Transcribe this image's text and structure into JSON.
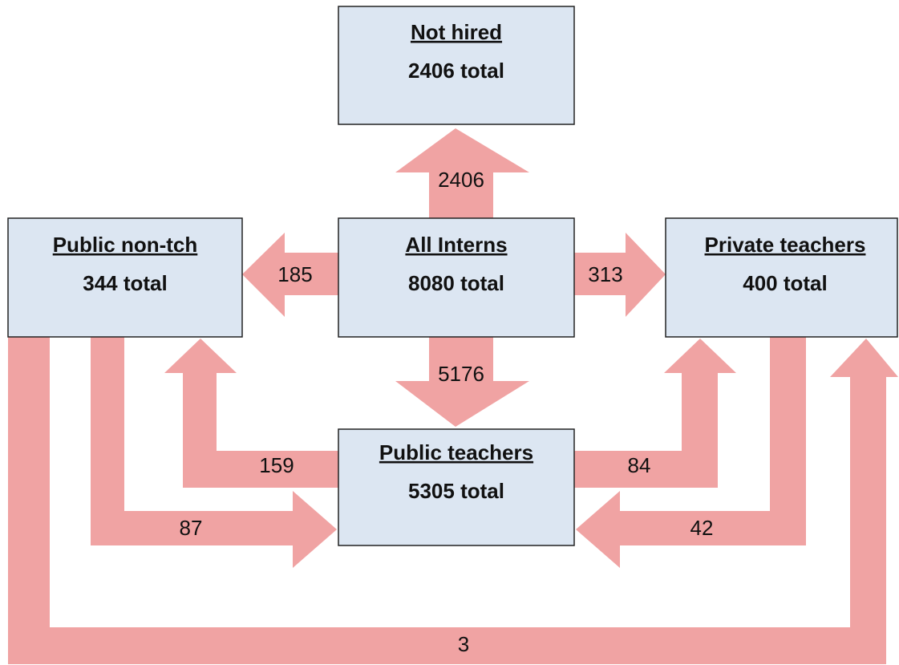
{
  "nodes": [
    {
      "title": "Not hired",
      "total": "2406 total"
    },
    {
      "title": "Public non-tch",
      "total": "344 total"
    },
    {
      "title": "All Interns",
      "total": "8080 total"
    },
    {
      "title": "Private teachers",
      "total": "400 total"
    },
    {
      "title": "Public teachers",
      "total": "5305 total"
    }
  ],
  "flows": [
    "2406",
    "185",
    "313",
    "5176",
    "159",
    "87",
    "84",
    "42",
    "3"
  ]
}
